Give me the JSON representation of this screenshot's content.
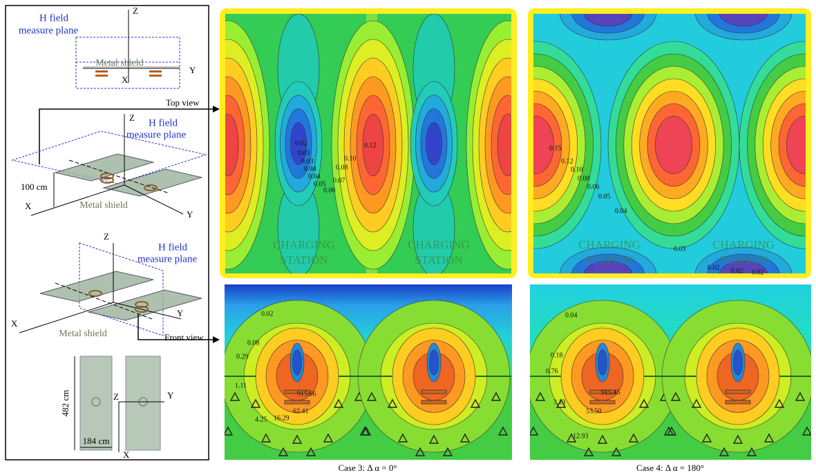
{
  "diagram": {
    "view1": {
      "z": "Z",
      "h1": "H field",
      "h2": "measure plane",
      "shield": "Metal shield",
      "x": "X",
      "y": "Y"
    },
    "view2": {
      "top_view": "Top view",
      "z": "Z",
      "h1": "H field",
      "h2": "measure plane",
      "dist": "100 cm",
      "x": "X",
      "shield": "Metal shield",
      "y": "Y"
    },
    "view3": {
      "z": "Z",
      "h1": "H field",
      "h2": "measure plane",
      "y": "Y",
      "x": "X",
      "shield": "Metal shield",
      "front_view": "Front view"
    },
    "plan": {
      "length": "482 cm",
      "z": "Z",
      "y": "Y",
      "width": "184 cm",
      "x": "X"
    }
  },
  "case3_top": {
    "stations": [
      "CHARGING",
      "STATION",
      "CHARGING",
      "STATION"
    ],
    "labels": [
      "0.02",
      "0.03",
      "0.03",
      "0.04",
      "0.04",
      "0.05",
      "0.06",
      "0.07",
      "0.08",
      "0.10",
      "0.12"
    ]
  },
  "case4_top": {
    "stations": [
      "CHARGING",
      "STATION",
      "CHARGING",
      "STATION"
    ],
    "labels": [
      "0.15",
      "0.12",
      "0.10",
      "0.08",
      "0.06",
      "0.05",
      "0.04",
      "0.03",
      "0.02",
      "0.02",
      "0.02"
    ]
  },
  "case3_front": {
    "labels": [
      "0.02",
      "0.08",
      "0.29",
      "1.11",
      "4.25",
      "16.29",
      "62.41",
      "915.66"
    ]
  },
  "case4_front": {
    "labels": [
      "0.04",
      "0.18",
      "0.76",
      "3.13",
      "12.93",
      "53.50",
      "915.45"
    ]
  },
  "captions": [
    "Case 3: Δ α = 0°",
    "Case 4: Δ α = 180°"
  ]
}
